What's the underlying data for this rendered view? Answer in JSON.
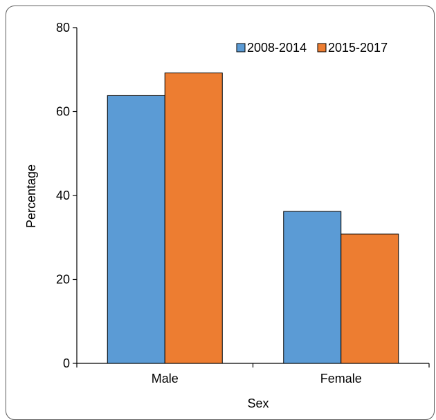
{
  "chart_data": {
    "type": "bar",
    "title": "",
    "xlabel": "Sex",
    "ylabel": "Percentage",
    "categories": [
      "Male",
      "Female"
    ],
    "series": [
      {
        "name": "2008-2014",
        "values": [
          63.8,
          36.2
        ]
      },
      {
        "name": "2015-2017",
        "values": [
          69.2,
          30.8
        ]
      }
    ],
    "ylim": [
      0,
      80
    ],
    "yticks": [
      0,
      20,
      40,
      60,
      80
    ],
    "legend_position": "top-right",
    "grid": false
  },
  "colors": {
    "series": [
      "#5b9bd5",
      "#ed7d31"
    ],
    "axis": "#000000",
    "frame": "#5a5a5a"
  }
}
